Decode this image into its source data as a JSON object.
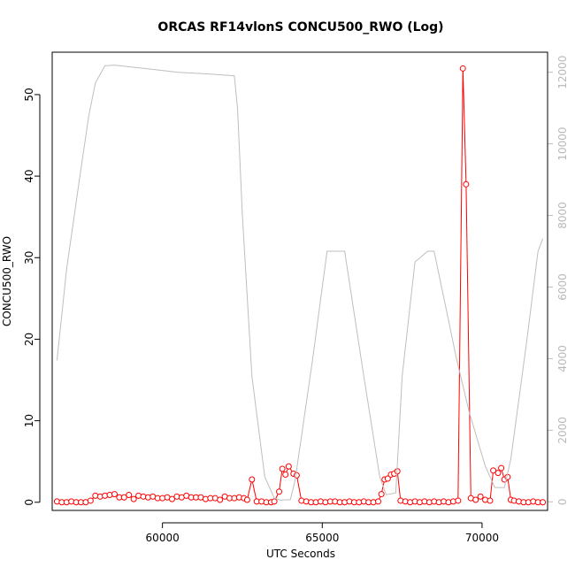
{
  "chart_data": {
    "type": "line",
    "title": "ORCAS RF14vlonS CONCU500_RWO (Log)",
    "xlabel": "UTC Seconds",
    "ylabel": "CONCU500_RWO",
    "xlim": [
      56550,
      72050
    ],
    "ylim": [
      -1.0,
      55.2
    ],
    "y2lim": [
      -240,
      12560
    ],
    "x_ticks": [
      60000,
      65000,
      70000
    ],
    "y_ticks": [
      0,
      10,
      20,
      30,
      40,
      50
    ],
    "y2_ticks": [
      0,
      2000,
      4000,
      6000,
      8000,
      10000,
      12000
    ],
    "grid": false,
    "legend": "none",
    "colors": {
      "primary": "#ff0000",
      "secondary": "#bebebe",
      "axis": "#000000"
    },
    "series": [
      {
        "axis": "left",
        "style": "line-with-open-circles",
        "color": "#ff0000",
        "x": [
          56700,
          56850,
          57000,
          57150,
          57300,
          57450,
          57600,
          57750,
          57900,
          58050,
          58200,
          58350,
          58500,
          58650,
          58800,
          58950,
          59100,
          59250,
          59400,
          59550,
          59700,
          59850,
          60000,
          60150,
          60300,
          60450,
          60600,
          60750,
          60900,
          61050,
          61200,
          61350,
          61500,
          61650,
          61800,
          61950,
          62100,
          62250,
          62400,
          62550,
          62650,
          62800,
          62950,
          63100,
          63250,
          63400,
          63500,
          63650,
          63750,
          63850,
          63950,
          64100,
          64200,
          64350,
          64500,
          64650,
          64800,
          64950,
          65100,
          65250,
          65400,
          65550,
          65700,
          65850,
          66000,
          66150,
          66300,
          66450,
          66600,
          66750,
          66850,
          66950,
          67050,
          67150,
          67250,
          67350,
          67450,
          67600,
          67750,
          67900,
          68050,
          68200,
          68350,
          68500,
          68650,
          68800,
          68950,
          69100,
          69250,
          69400,
          69500,
          69650,
          69800,
          69950,
          70100,
          70250,
          70350,
          70500,
          70600,
          70700,
          70800,
          70900,
          71000,
          71150,
          71300,
          71450,
          71600,
          71750,
          71900
        ],
        "y": [
          0.1,
          0.0,
          0.0,
          0.1,
          0.0,
          0.0,
          0.0,
          0.2,
          0.8,
          0.7,
          0.8,
          0.9,
          1.0,
          0.6,
          0.6,
          0.9,
          0.4,
          0.8,
          0.7,
          0.6,
          0.7,
          0.5,
          0.5,
          0.6,
          0.4,
          0.7,
          0.6,
          0.8,
          0.6,
          0.6,
          0.6,
          0.4,
          0.5,
          0.5,
          0.3,
          0.7,
          0.5,
          0.5,
          0.6,
          0.5,
          0.3,
          2.8,
          0.1,
          0.1,
          0.0,
          0.0,
          0.1,
          1.3,
          4.1,
          3.4,
          4.4,
          3.5,
          3.3,
          0.2,
          0.1,
          0.0,
          0.0,
          0.1,
          0.0,
          0.1,
          0.1,
          0.0,
          0.0,
          0.1,
          0.0,
          0.0,
          0.1,
          0.0,
          0.0,
          0.1,
          1.0,
          2.8,
          2.9,
          3.4,
          3.5,
          3.8,
          0.2,
          0.1,
          0.0,
          0.1,
          0.0,
          0.1,
          0.0,
          0.1,
          0.0,
          0.1,
          0.0,
          0.1,
          0.2,
          53.2,
          39.0,
          0.5,
          0.3,
          0.7,
          0.3,
          0.2,
          3.9,
          3.6,
          4.2,
          2.8,
          3.1,
          0.3,
          0.2,
          0.1,
          0.0,
          0.0,
          0.1,
          0.0,
          0.0
        ]
      },
      {
        "axis": "right",
        "style": "line",
        "color": "#bebebe",
        "x": [
          56700,
          57000,
          57450,
          57700,
          57900,
          58200,
          58500,
          59500,
          60500,
          61500,
          62250,
          62350,
          62500,
          62800,
          63200,
          63500,
          63700,
          64000,
          64150,
          64700,
          65150,
          65700,
          66300,
          66800,
          67000,
          67300,
          67500,
          67900,
          68300,
          68500,
          68850,
          69200,
          69600,
          70100,
          70400,
          70700,
          70900,
          71400,
          71750,
          71900
        ],
        "y": [
          3950,
          6500,
          9300,
          10800,
          11700,
          12180,
          12200,
          12100,
          12000,
          11950,
          11900,
          11000,
          8000,
          3500,
          700,
          100,
          50,
          60,
          600,
          4000,
          7000,
          7000,
          3500,
          700,
          200,
          250,
          3500,
          6700,
          7000,
          7000,
          5500,
          4000,
          2500,
          1000,
          400,
          400,
          1200,
          4500,
          7000,
          7350
        ]
      }
    ]
  }
}
